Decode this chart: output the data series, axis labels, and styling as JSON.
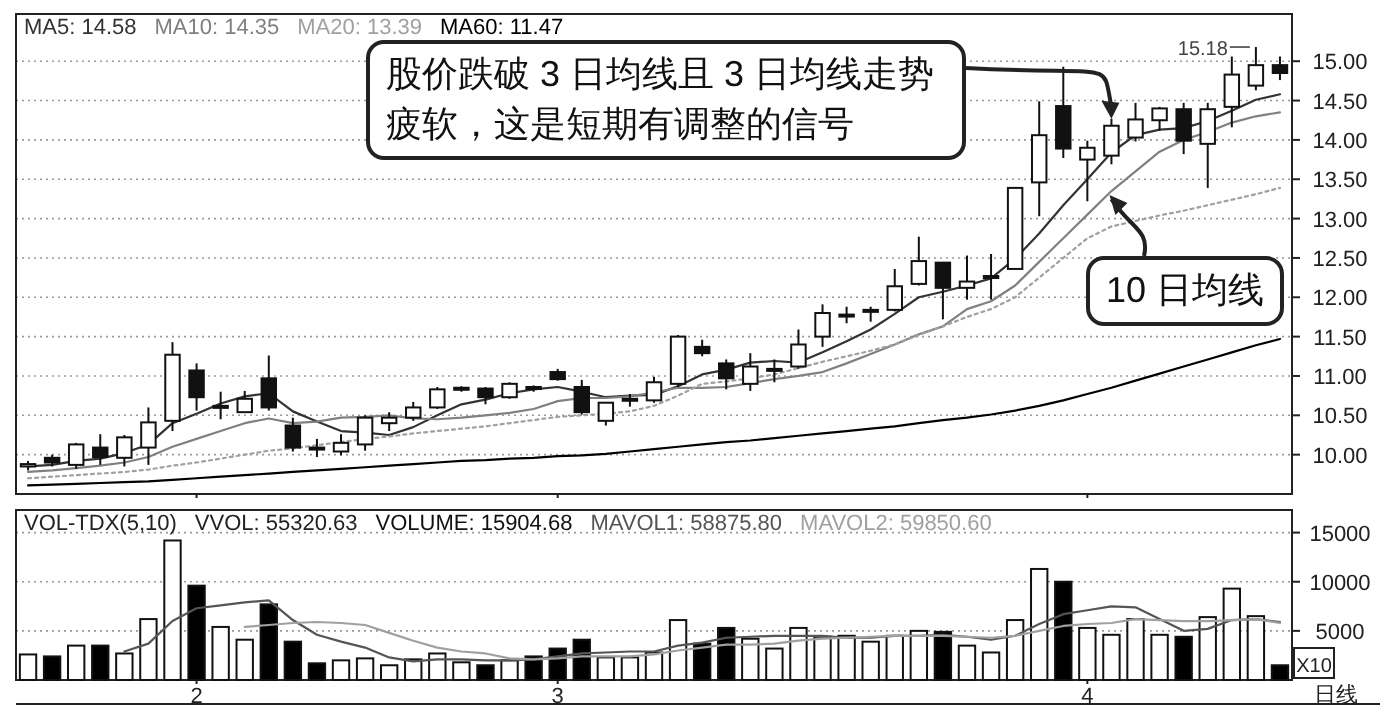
{
  "chart_data": [
    {
      "type": "candlestick",
      "legend": "top left",
      "grid": "y",
      "tick_labels": "y",
      "categories": [
        null,
        null,
        null,
        null,
        null,
        null,
        null,
        "2",
        null,
        null,
        null,
        null,
        null,
        null,
        null,
        null,
        null,
        null,
        null,
        null,
        null,
        null,
        "3",
        null,
        null,
        null,
        null,
        null,
        null,
        null,
        null,
        null,
        null,
        null,
        null,
        null,
        null,
        null,
        null,
        null,
        null,
        null,
        null,
        null,
        "4",
        null,
        null,
        null,
        null,
        null,
        null,
        null,
        null
      ],
      "ohlc": [
        [
          9.85,
          9.92,
          9.8,
          9.88
        ],
        [
          9.96,
          10.0,
          9.85,
          9.9
        ],
        [
          9.87,
          10.15,
          9.82,
          10.13
        ],
        [
          10.09,
          10.26,
          9.87,
          9.97
        ],
        [
          9.96,
          10.25,
          9.85,
          10.22
        ],
        [
          10.09,
          10.6,
          9.87,
          10.41
        ],
        [
          10.43,
          11.43,
          10.3,
          11.27
        ],
        [
          11.07,
          11.16,
          10.56,
          10.73
        ],
        [
          10.62,
          10.8,
          10.45,
          10.6
        ],
        [
          10.54,
          10.81,
          10.54,
          10.71
        ],
        [
          10.97,
          11.26,
          10.56,
          10.6
        ],
        [
          10.37,
          10.47,
          10.04,
          10.09
        ],
        [
          10.09,
          10.2,
          9.97,
          10.07
        ],
        [
          10.04,
          10.26,
          9.99,
          10.15
        ],
        [
          10.13,
          10.5,
          10.05,
          10.47
        ],
        [
          10.4,
          10.54,
          10.3,
          10.47
        ],
        [
          10.47,
          10.67,
          10.43,
          10.6
        ],
        [
          10.6,
          10.86,
          10.58,
          10.83
        ],
        [
          10.84,
          10.87,
          10.8,
          10.85
        ],
        [
          10.84,
          10.86,
          10.64,
          10.73
        ],
        [
          10.73,
          10.92,
          10.71,
          10.9
        ],
        [
          10.84,
          10.88,
          10.8,
          10.86
        ],
        [
          11.05,
          11.09,
          10.94,
          10.96
        ],
        [
          10.86,
          10.95,
          10.51,
          10.54
        ],
        [
          10.43,
          10.66,
          10.37,
          10.66
        ],
        [
          10.7,
          10.77,
          10.61,
          10.71
        ],
        [
          10.69,
          10.99,
          10.66,
          10.92
        ],
        [
          10.9,
          11.52,
          10.86,
          11.5
        ],
        [
          11.37,
          11.46,
          11.25,
          11.29
        ],
        [
          11.16,
          11.21,
          10.83,
          10.97
        ],
        [
          10.9,
          11.29,
          10.81,
          11.12
        ],
        [
          11.08,
          11.21,
          10.92,
          11.09
        ],
        [
          11.12,
          11.59,
          11.09,
          11.4
        ],
        [
          11.5,
          11.91,
          11.37,
          11.8
        ],
        [
          11.77,
          11.88,
          11.67,
          11.78
        ],
        [
          11.83,
          11.88,
          11.69,
          11.84
        ],
        [
          11.84,
          12.36,
          11.82,
          12.14
        ],
        [
          12.17,
          12.77,
          12.15,
          12.46
        ],
        [
          12.44,
          12.44,
          11.72,
          12.12
        ],
        [
          12.12,
          12.53,
          11.97,
          12.2
        ],
        [
          12.26,
          12.55,
          11.97,
          12.27
        ],
        [
          12.36,
          13.39,
          12.36,
          13.39
        ],
        [
          13.46,
          14.49,
          13.03,
          14.06
        ],
        [
          14.43,
          14.93,
          13.77,
          13.89
        ],
        [
          13.75,
          13.99,
          13.22,
          13.9
        ],
        [
          13.8,
          14.27,
          13.69,
          14.18
        ],
        [
          14.03,
          14.47,
          13.98,
          14.26
        ],
        [
          14.25,
          14.42,
          14.12,
          14.4
        ],
        [
          14.39,
          14.47,
          13.82,
          13.99
        ],
        [
          13.95,
          14.47,
          13.39,
          14.39
        ],
        [
          14.42,
          15.06,
          14.16,
          14.83
        ],
        [
          14.69,
          15.18,
          14.63,
          14.95
        ],
        [
          14.95,
          15.06,
          14.76,
          14.85
        ]
      ],
      "series": [
        {
          "name": "MA5: 14.58",
          "type": "line",
          "color": "#333333",
          "values": [
            9.85,
            9.87,
            9.92,
            9.95,
            10.02,
            10.13,
            10.4,
            10.52,
            10.65,
            10.74,
            10.78,
            10.55,
            10.42,
            10.3,
            10.28,
            10.25,
            10.35,
            10.5,
            10.64,
            10.7,
            10.78,
            10.83,
            10.86,
            10.8,
            10.73,
            10.75,
            10.76,
            10.87,
            11.02,
            11.08,
            11.17,
            11.19,
            11.17,
            11.3,
            11.44,
            11.59,
            11.79,
            12.0,
            12.07,
            12.15,
            12.24,
            12.49,
            12.81,
            13.17,
            13.5,
            13.84,
            14.06,
            14.13,
            14.15,
            14.24,
            14.37,
            14.51,
            14.58
          ]
        },
        {
          "name": "MA10: 14.35",
          "type": "line",
          "color": "#808080",
          "values": [
            9.78,
            9.8,
            9.83,
            9.86,
            9.9,
            9.97,
            10.1,
            10.2,
            10.3,
            10.4,
            10.46,
            10.4,
            10.42,
            10.47,
            10.48,
            10.5,
            10.46,
            10.45,
            10.47,
            10.5,
            10.53,
            10.58,
            10.68,
            10.72,
            10.72,
            10.74,
            10.79,
            10.85,
            10.85,
            10.86,
            10.91,
            10.96,
            11.0,
            11.05,
            11.16,
            11.28,
            11.4,
            11.53,
            11.63,
            11.85,
            11.95,
            12.15,
            12.45,
            12.75,
            13.05,
            13.35,
            13.6,
            13.85,
            14.0,
            14.1,
            14.22,
            14.3,
            14.35
          ]
        },
        {
          "name": "MA20: 13.39",
          "type": "line",
          "color": "#a0a0a0",
          "line_style": "dotted",
          "values": [
            9.7,
            9.72,
            9.74,
            9.76,
            9.78,
            9.81,
            9.86,
            9.9,
            9.95,
            10.0,
            10.05,
            10.08,
            10.12,
            10.16,
            10.2,
            10.23,
            10.27,
            10.3,
            10.33,
            10.36,
            10.4,
            10.44,
            10.48,
            10.5,
            10.52,
            10.55,
            10.62,
            10.75,
            10.9,
            10.93,
            10.97,
            11.02,
            11.1,
            11.18,
            11.25,
            11.32,
            11.4,
            11.52,
            11.63,
            11.75,
            11.85,
            12.0,
            12.25,
            12.5,
            12.75,
            12.9,
            12.97,
            13.04,
            13.1,
            13.17,
            13.24,
            13.31,
            13.39
          ]
        },
        {
          "name": "MA60: 11.47",
          "type": "line",
          "color": "#000000",
          "values": [
            9.61,
            9.62,
            9.63,
            9.64,
            9.65,
            9.66,
            9.68,
            9.7,
            9.72,
            9.74,
            9.76,
            9.78,
            9.8,
            9.82,
            9.84,
            9.86,
            9.88,
            9.9,
            9.92,
            9.93,
            9.95,
            9.96,
            9.98,
            9.99,
            10.01,
            10.04,
            10.07,
            10.1,
            10.13,
            10.16,
            10.18,
            10.21,
            10.24,
            10.27,
            10.3,
            10.33,
            10.36,
            10.4,
            10.44,
            10.47,
            10.51,
            10.56,
            10.62,
            10.69,
            10.77,
            10.85,
            10.94,
            11.03,
            11.12,
            11.21,
            11.3,
            11.39,
            11.47
          ]
        }
      ],
      "ylim": [
        9.5,
        15.6
      ],
      "yticks": [
        {
          "value": 10,
          "label": "10.00"
        },
        {
          "value": 10.5,
          "label": "10.50"
        },
        {
          "value": 11,
          "label": "11.00"
        },
        {
          "value": 11.5,
          "label": "11.50"
        },
        {
          "value": 12,
          "label": "12.00"
        },
        {
          "value": 12.5,
          "label": "12.50"
        },
        {
          "value": 13,
          "label": "13.00"
        },
        {
          "value": 13.5,
          "label": "13.50"
        },
        {
          "value": 14,
          "label": "14.00"
        },
        {
          "value": 14.5,
          "label": "14.50"
        },
        {
          "value": 15,
          "label": "15.00"
        }
      ],
      "annotations": [
        "股价跌破 3 日均线且 3 日均线走势疲软，这是短期有调整的信号",
        "10 日均线",
        "15.18"
      ]
    },
    {
      "type": "bar",
      "title": "VOL-TDX(5,10)",
      "legend": "top left",
      "grid": "y",
      "categories": [
        null,
        null,
        null,
        null,
        null,
        null,
        null,
        "2",
        null,
        null,
        null,
        null,
        null,
        null,
        null,
        null,
        null,
        null,
        null,
        null,
        null,
        null,
        "3",
        null,
        null,
        null,
        null,
        null,
        null,
        null,
        null,
        null,
        null,
        null,
        null,
        null,
        null,
        null,
        null,
        null,
        null,
        null,
        null,
        null,
        "4",
        null,
        null,
        null,
        null,
        null,
        null,
        null,
        null
      ],
      "series": [
        {
          "name": "VOLUME: 15904.68",
          "type": "bar",
          "values": [
            2600,
            2400,
            3500,
            3500,
            2700,
            6200,
            14200,
            9600,
            5400,
            4100,
            7700,
            3900,
            1700,
            2000,
            2200,
            1500,
            2100,
            2700,
            1800,
            1500,
            2000,
            2400,
            3200,
            4100,
            2300,
            2300,
            2800,
            6100,
            3700,
            5300,
            4200,
            3200,
            5300,
            4400,
            4500,
            3900,
            4500,
            5000,
            4900,
            3500,
            2800,
            6100,
            11300,
            10000,
            5300,
            4600,
            6200,
            4600,
            4400,
            6400,
            9300,
            6500,
            1500
          ],
          "colors": [
            "#ffffff",
            "#000000",
            "#ffffff",
            "#000000",
            "#ffffff",
            "#ffffff",
            "#ffffff",
            "#000000",
            "#ffffff",
            "#ffffff",
            "#000000",
            "#000000",
            "#000000",
            "#ffffff",
            "#ffffff",
            "#ffffff",
            "#ffffff",
            "#ffffff",
            "#ffffff",
            "#000000",
            "#ffffff",
            "#000000",
            "#000000",
            "#000000",
            "#ffffff",
            "#ffffff",
            "#ffffff",
            "#ffffff",
            "#000000",
            "#000000",
            "#ffffff",
            "#ffffff",
            "#ffffff",
            "#ffffff",
            "#ffffff",
            "#ffffff",
            "#ffffff",
            "#ffffff",
            "#000000",
            "#ffffff",
            "#ffffff",
            "#ffffff",
            "#ffffff",
            "#000000",
            "#ffffff",
            "#ffffff",
            "#ffffff",
            "#ffffff",
            "#000000",
            "#ffffff",
            "#ffffff",
            "#ffffff",
            "#000000"
          ]
        },
        {
          "name": "MAVOL1: 58875.80",
          "type": "line",
          "color": "#555555",
          "values": [
            null,
            null,
            null,
            null,
            2900,
            3700,
            6000,
            7300,
            7600,
            7900,
            8100,
            6100,
            4600,
            3900,
            3300,
            2300,
            1900,
            2100,
            2100,
            2000,
            2000,
            2100,
            2400,
            2700,
            2800,
            2900,
            2900,
            3500,
            3800,
            4300,
            4400,
            4500,
            4500,
            4500,
            4300,
            4300,
            4500,
            4500,
            4600,
            4400,
            4100,
            4500,
            5700,
            6700,
            7100,
            7500,
            7400,
            6200,
            5000,
            5200,
            6100,
            6200,
            5900
          ]
        },
        {
          "name": "MAVOL2: 59850.60",
          "type": "line",
          "color": "#a0a0a0",
          "values": [
            null,
            null,
            null,
            null,
            null,
            null,
            null,
            null,
            null,
            5400,
            5600,
            5800,
            5900,
            5800,
            5600,
            4800,
            4000,
            3300,
            2900,
            2700,
            2200,
            2100,
            2200,
            2400,
            2400,
            2400,
            2600,
            3000,
            3300,
            3600,
            3600,
            3700,
            4000,
            4200,
            4300,
            4400,
            4500,
            4500,
            4500,
            4400,
            4300,
            4500,
            5000,
            5500,
            5700,
            5800,
            6200,
            6100,
            6000,
            6000,
            6100,
            6200,
            5800
          ]
        }
      ],
      "ylim": [
        0,
        17300
      ],
      "yticks": [
        5000,
        10000,
        15000
      ],
      "annotations": [
        "VVOL: 55320.63",
        "X10",
        "日线"
      ]
    }
  ]
}
